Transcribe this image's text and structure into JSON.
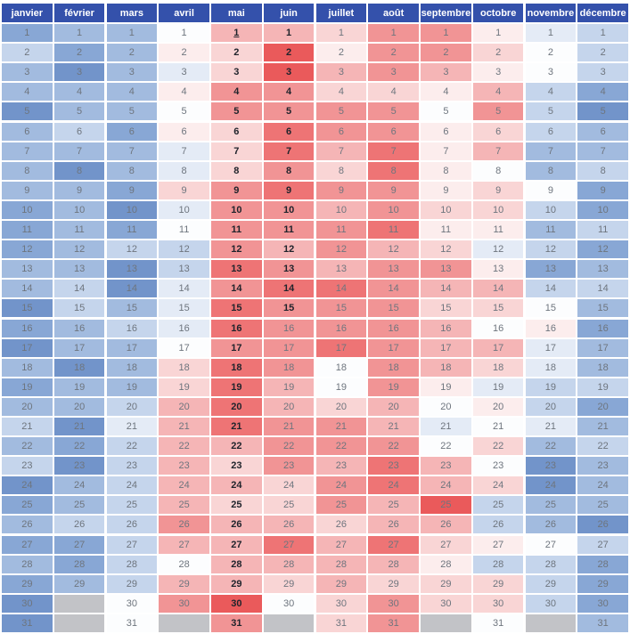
{
  "chart_data": {
    "type": "heatmap",
    "title": "",
    "columns": [
      "janvier",
      "février",
      "mars",
      "avril",
      "mai",
      "juin",
      "juillet",
      "août",
      "septembre",
      "octobre",
      "novembre",
      "décembre"
    ],
    "rows": [
      1,
      2,
      3,
      4,
      5,
      6,
      7,
      8,
      9,
      10,
      11,
      12,
      13,
      14,
      15,
      16,
      17,
      18,
      19,
      20,
      21,
      22,
      23,
      24,
      25,
      26,
      27,
      28,
      29,
      30,
      31
    ],
    "legend": "diverging blue-white-red intensity per day; gray = day does not exist in month",
    "palette": {
      "B5": "#7294CA",
      "B4": "#88A7D5",
      "B3": "#A2BBDF",
      "B2": "#C5D5EC",
      "B1": "#E4EBF6",
      "W": "#FCFDFE",
      "R1": "#FCEDED",
      "R2": "#F9D5D5",
      "R3": "#F5B5B6",
      "R4": "#F19495",
      "R5": "#EE7475",
      "R6": "#EA5A5B",
      "G": "#C2C3C7"
    },
    "header_bg": "#3451AB",
    "header_text_color": "#FFFFFF",
    "day_text_color": "#6E757E",
    "bold_day_text_color": "#20242C",
    "empty_code": "G",
    "cells": {
      "janvier": [
        "B4",
        "B2",
        "B3",
        "B3",
        "B5",
        "B3",
        "B3",
        "B3",
        "B3",
        "B4",
        "B4",
        "B4",
        "B3",
        "B3",
        "B5",
        "B4",
        "B5",
        "B3",
        "B4",
        "B3",
        "B2",
        "B3",
        "B2",
        "B5",
        "B4",
        "B3",
        "B4",
        "B3",
        "B4",
        "B5",
        "B5"
      ],
      "février": [
        "B3",
        "B4",
        "B5",
        "B3",
        "B3",
        "B2",
        "B3",
        "B5",
        "B3",
        "B3",
        "B3",
        "B3",
        "B3",
        "B2",
        "B2",
        "B3",
        "B3",
        "B5",
        "B3",
        "B3",
        "B5",
        "B4",
        "B5",
        "B3",
        "B3",
        "B2",
        "B4",
        "B4",
        "B3",
        "G",
        "G"
      ],
      "mars": [
        "B3",
        "B3",
        "B3",
        "B3",
        "B3",
        "B4",
        "B3",
        "B3",
        "B4",
        "B5",
        "B4",
        "B2",
        "B5",
        "B5",
        "B3",
        "B2",
        "B3",
        "B3",
        "B3",
        "B2",
        "B1",
        "B2",
        "B2",
        "B2",
        "B2",
        "B2",
        "B2",
        "B2",
        "B2",
        "W",
        "W"
      ],
      "avril": [
        "W",
        "R1",
        "B1",
        "R1",
        "W",
        "R1",
        "B1",
        "B1",
        "R2",
        "B1",
        "W",
        "B2",
        "B2",
        "B1",
        "B1",
        "B1",
        "W",
        "R2",
        "R2",
        "R3",
        "R3",
        "R3",
        "R3",
        "R3",
        "R3",
        "R4",
        "R3",
        "W",
        "R3",
        "R4",
        "G"
      ],
      "mai": [
        "R3",
        "R2",
        "R2",
        "R4",
        "R4",
        "R2",
        "R2",
        "R2",
        "R4",
        "R4",
        "R4",
        "R4",
        "R5",
        "R4",
        "R5",
        "R5",
        "R4",
        "R5",
        "R5",
        "R5",
        "R5",
        "R3",
        "R2",
        "R3",
        "R2",
        "R3",
        "R3",
        "R3",
        "R3",
        "R6",
        "R4"
      ],
      "juin": [
        "R3",
        "R6",
        "R6",
        "R4",
        "R4",
        "R5",
        "R5",
        "R4",
        "R5",
        "R4",
        "R4",
        "R3",
        "R4",
        "R5",
        "R4",
        "R4",
        "R4",
        "R4",
        "R3",
        "R3",
        "R4",
        "R4",
        "R4",
        "R2",
        "R2",
        "R3",
        "R5",
        "R3",
        "R2",
        "W",
        "G"
      ],
      "juillet": [
        "R2",
        "R1",
        "R3",
        "R2",
        "R4",
        "R4",
        "R3",
        "R2",
        "R4",
        "R3",
        "R4",
        "R4",
        "R3",
        "R5",
        "R4",
        "R4",
        "R5",
        "W",
        "W",
        "R2",
        "R4",
        "R4",
        "R3",
        "R4",
        "R4",
        "R2",
        "R3",
        "R3",
        "R3",
        "R2",
        "R2"
      ],
      "août": [
        "R4",
        "R4",
        "R4",
        "R2",
        "R4",
        "R4",
        "R5",
        "R5",
        "R4",
        "R4",
        "R5",
        "R3",
        "R4",
        "R4",
        "R4",
        "R4",
        "R4",
        "R4",
        "R4",
        "R3",
        "R3",
        "R4",
        "R5",
        "R5",
        "R3",
        "R3",
        "R5",
        "R3",
        "R2",
        "R4",
        "R4"
      ],
      "septembre": [
        "R4",
        "R4",
        "R3",
        "R1",
        "W",
        "R1",
        "R1",
        "R1",
        "R1",
        "R2",
        "R1",
        "R2",
        "R4",
        "R3",
        "R2",
        "R3",
        "R3",
        "R3",
        "R1",
        "W",
        "B1",
        "W",
        "R3",
        "R3",
        "R6",
        "R3",
        "R2",
        "R1",
        "R2",
        "R2",
        "G"
      ],
      "octobre": [
        "R1",
        "R2",
        "R1",
        "R3",
        "R4",
        "R2",
        "R3",
        "W",
        "R2",
        "R2",
        "R1",
        "B1",
        "R1",
        "R3",
        "R2",
        "W",
        "R3",
        "R2",
        "B1",
        "R1",
        "W",
        "R2",
        "W",
        "R2",
        "B2",
        "B2",
        "R1",
        "B2",
        "R2",
        "R2",
        "W"
      ],
      "novembre": [
        "B1",
        "W",
        "W",
        "B2",
        "B2",
        "B2",
        "B3",
        "B3",
        "W",
        "B2",
        "B3",
        "B2",
        "B4",
        "B2",
        "W",
        "R1",
        "B1",
        "B1",
        "B2",
        "B2",
        "B1",
        "B3",
        "B5",
        "B5",
        "B3",
        "B3",
        "W",
        "B2",
        "B2",
        "B2",
        "G"
      ],
      "décembre": [
        "B2",
        "B2",
        "B2",
        "B4",
        "B5",
        "B3",
        "B3",
        "B2",
        "B4",
        "B4",
        "B2",
        "B4",
        "B3",
        "B2",
        "B3",
        "B4",
        "B3",
        "B3",
        "B2",
        "B4",
        "B3",
        "B2",
        "B3",
        "B3",
        "B3",
        "B5",
        "B2",
        "B4",
        "B4",
        "B4",
        "B3"
      ]
    },
    "bold_days": {
      "mai": [
        1,
        2,
        3,
        4,
        5,
        6,
        7,
        8,
        9,
        10,
        11,
        12,
        13,
        14,
        15,
        16,
        17,
        18,
        19,
        20,
        21,
        22,
        23,
        24,
        25,
        26,
        27,
        28,
        29,
        30,
        31
      ],
      "juin": [
        1,
        2,
        3,
        4,
        5,
        6,
        7,
        8,
        9,
        10,
        11,
        12,
        13,
        14,
        15
      ]
    },
    "underlined_days": {
      "mai": [
        1
      ]
    }
  }
}
